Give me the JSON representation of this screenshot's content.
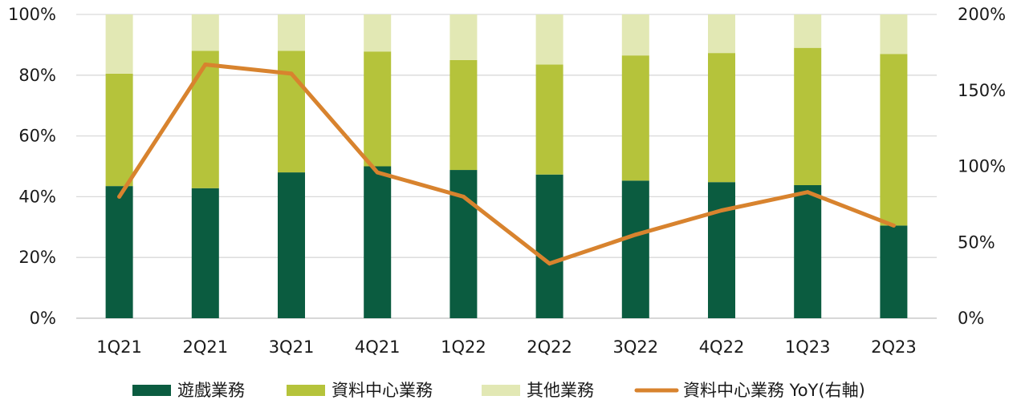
{
  "chart_data": {
    "type": "bar",
    "stacked": true,
    "categories": [
      "1Q21",
      "2Q21",
      "3Q21",
      "4Q21",
      "1Q22",
      "2Q22",
      "3Q22",
      "4Q22",
      "1Q23",
      "2Q23"
    ],
    "series": [
      {
        "name": "遊戲業務",
        "color": "#0b5c40",
        "values": [
          43.5,
          42.8,
          48.0,
          50.0,
          48.8,
          47.3,
          45.3,
          44.8,
          43.8,
          30.5
        ]
      },
      {
        "name": "資料中心業務",
        "color": "#b5c33b",
        "values": [
          37.0,
          45.2,
          40.0,
          37.8,
          36.2,
          36.2,
          41.2,
          42.5,
          45.2,
          56.5
        ]
      },
      {
        "name": "其他業務",
        "color": "#e2e8b4",
        "values": [
          19.5,
          12.0,
          12.0,
          12.2,
          15.0,
          16.5,
          13.5,
          12.7,
          11.0,
          13.0
        ]
      }
    ],
    "line_series": {
      "name": "資料中心業務 YoY(右軸)",
      "color": "#d8832e",
      "axis": "right",
      "values": [
        80,
        167,
        161,
        96,
        80,
        36,
        55,
        71,
        83,
        61
      ]
    },
    "left_axis": {
      "min": 0,
      "max": 100,
      "ticks": [
        0,
        20,
        40,
        60,
        80,
        100
      ],
      "tick_labels": [
        "0%",
        "20%",
        "40%",
        "60%",
        "80%",
        "100%"
      ]
    },
    "right_axis": {
      "min": 0,
      "max": 200,
      "ticks": [
        0,
        50,
        100,
        150,
        200
      ],
      "tick_labels": [
        "0%",
        "50%",
        "100%",
        "150%",
        "200%"
      ]
    },
    "grid": true,
    "legend_position": "bottom",
    "title": "",
    "xlabel": "",
    "ylabel": ""
  }
}
